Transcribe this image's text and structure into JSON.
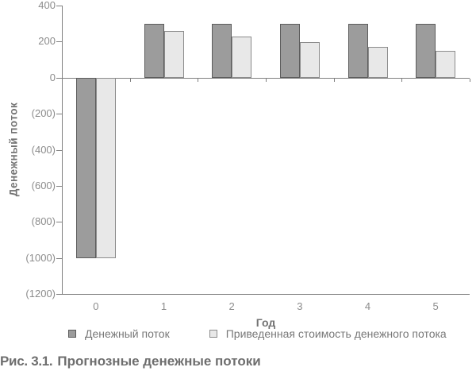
{
  "figure": {
    "caption_prefix": "Рис. 3.1.",
    "caption_text": "Прогнозные денежные потоки"
  },
  "chart_data": {
    "type": "bar",
    "title": "",
    "xlabel": "Год",
    "ylabel": "Денежный поток",
    "categories": [
      "0",
      "1",
      "2",
      "3",
      "4",
      "5"
    ],
    "series": [
      {
        "name": "Денежный поток",
        "values": [
          -1000,
          300,
          300,
          300,
          300,
          300
        ],
        "fill": "#9c9c9c",
        "border": "#5c5c5c",
        "key": "cash-flow"
      },
      {
        "name": "Приведенная стоимость денежного потока",
        "values": [
          -1000,
          261,
          227,
          197,
          172,
          149
        ],
        "fill": "#e8e8e8",
        "border": "#8c8c8c",
        "key": "present-value"
      }
    ],
    "ylim": [
      -1200,
      400
    ],
    "y_ticks": [
      {
        "label": "400",
        "value": 400
      },
      {
        "label": "200",
        "value": 200
      },
      {
        "label": "0",
        "value": 0
      },
      {
        "label": "(200)",
        "value": -200
      },
      {
        "label": "(400)",
        "value": -400
      },
      {
        "label": "(600)",
        "value": -600
      },
      {
        "label": "(800)",
        "value": -800
      },
      {
        "label": "(1000)",
        "value": -1000
      },
      {
        "label": "(1200)",
        "value": -1200
      }
    ],
    "grid": false,
    "legend_position": "bottom"
  },
  "colors": {
    "axis": "#808080",
    "tick_text": "#8c8c8c",
    "axis_title_text": "#737373",
    "legend_text": "#787878",
    "caption_text": "#6e6e6e",
    "background": "#ffffff"
  }
}
